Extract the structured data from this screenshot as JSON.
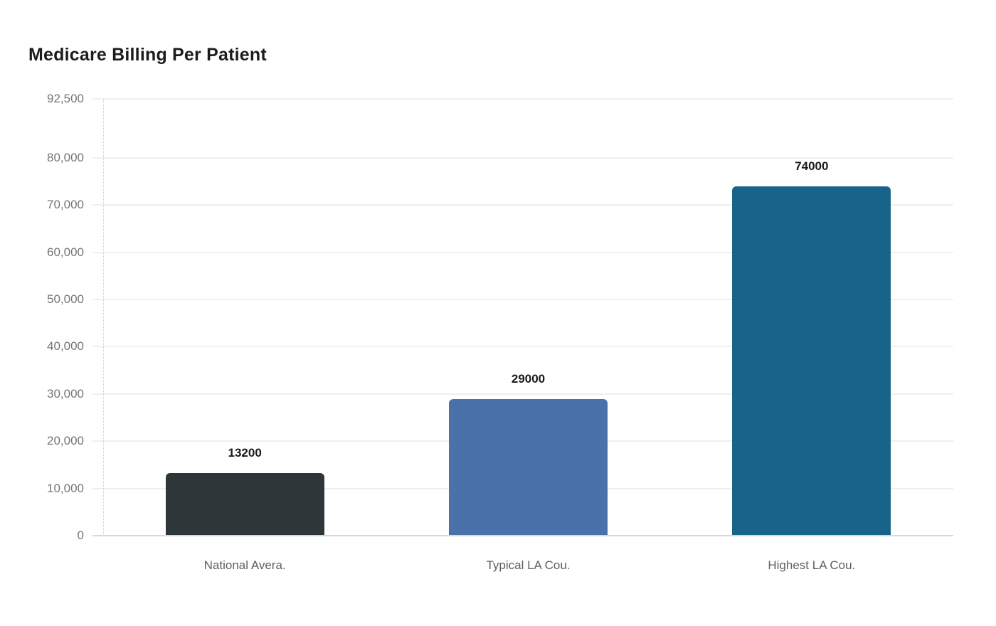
{
  "page": {
    "title": "Medicare Billing Per Patient"
  },
  "colors": {
    "background": "#ffffff",
    "title_text": "#1c1c1c",
    "tick_text": "#757575",
    "category_text": "#5f5f5f",
    "value_label_text": "#1a1a1a",
    "gridline": "#efefef",
    "axis_line": "#d8d8d8"
  },
  "chart_data": {
    "type": "bar",
    "title": "Medicare Billing Per Patient",
    "categories": [
      "National Avera.",
      "Typical LA Cou.",
      "Highest LA Cou."
    ],
    "values": [
      13200,
      29000,
      74000
    ],
    "value_labels": [
      "13200",
      "29000",
      "74000"
    ],
    "bar_colors": [
      "#2d3638",
      "#4a71a9",
      "#186389"
    ],
    "xlabel": "",
    "ylabel": "",
    "ylim": [
      0,
      92500
    ],
    "y_ticks": [
      0,
      10000,
      20000,
      30000,
      40000,
      50000,
      60000,
      70000,
      80000,
      92500
    ],
    "y_tick_labels": [
      "0",
      "10,000",
      "20,000",
      "30,000",
      "40,000",
      "50,000",
      "60,000",
      "70,000",
      "80,000",
      "92,500"
    ],
    "grid": true,
    "legend": false,
    "bar_style": "rounded-top"
  }
}
